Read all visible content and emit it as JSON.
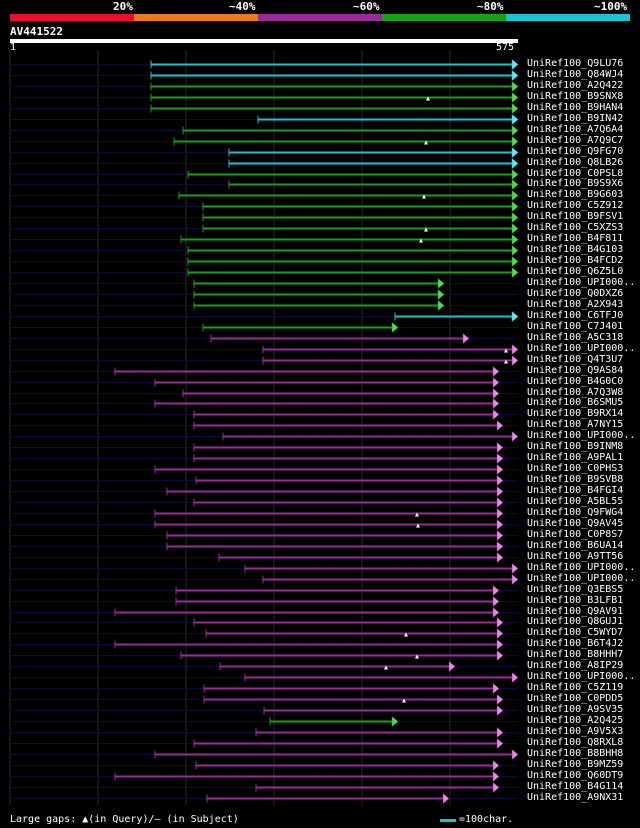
{
  "legend": {
    "labels": [
      "20%",
      "~40%",
      "~60%",
      "~80%",
      "~100%"
    ],
    "colors": [
      "#e8112d",
      "#e87a1a",
      "#9b2a9b",
      "#18a018",
      "#1ac3d1"
    ]
  },
  "query": {
    "id": "AV441522",
    "start": "1",
    "end": "575"
  },
  "hit_names": [
    "UniRef100_Q9LU76",
    "UniRef100_Q84WJ4",
    "UniRef100_A2Q422",
    "UniRef100_B9SNX8",
    "UniRef100_B9HAN4",
    "UniRef100_B9IN42",
    "UniRef100_A7Q6A4",
    "UniRef100_A7Q9C7",
    "UniRef100_Q9FG70",
    "UniRef100_Q8LB26",
    "UniRef100_C0PSL8",
    "UniRef100_B9S9X6",
    "UniRef100_B9G603",
    "UniRef100_C5Z912",
    "UniRef100_B9FSV1",
    "UniRef100_C5XZS3",
    "UniRef100_B4F811",
    "UniRef100_B4G103",
    "UniRef100_B4FCD2",
    "UniRef100_Q6Z5L0",
    "UniRef100_UPI000..",
    "UniRef100_Q0DXZ6",
    "UniRef100_A2X943",
    "UniRef100_C6TFJ0",
    "UniRef100_C7J401",
    "UniRef100_A5C318",
    "UniRef100_UPI000..",
    "UniRef100_Q4T3U7",
    "UniRef100_Q9AS84",
    "UniRef100_B4G0C0",
    "UniRef100_A7Q3W8",
    "UniRef100_B6SMU5",
    "UniRef100_B9RX14",
    "UniRef100_A7NY15",
    "UniRef100_UPI000..",
    "UniRef100_B9INM8",
    "UniRef100_A9PAL1",
    "UniRef100_C0PHS3",
    "UniRef100_B9SVB8",
    "UniRef100_B4FGI4",
    "UniRef100_A5BL55",
    "UniRef100_Q9FWG4",
    "UniRef100_Q9AV45",
    "UniRef100_C0P8S7",
    "UniRef100_B6UA14",
    "UniRef100_A9TT56",
    "UniRef100_UPI000..",
    "UniRef100_UPI000..",
    "UniRef100_Q3EBS5",
    "UniRef100_B3LFB1",
    "UniRef100_Q9AV91",
    "UniRef100_Q8GUJ1",
    "UniRef100_C5WYD7",
    "UniRef100_B6T4J2",
    "UniRef100_B8HHH7",
    "UniRef100_A8IP29",
    "UniRef100_UPI000..",
    "UniRef100_C5Z119",
    "UniRef100_C0PDD5",
    "UniRef100_A9SV35",
    "UniRef100_A2Q425",
    "UniRef100_A9V5X3",
    "UniRef100_Q8RXL8",
    "UniRef100_B8BHH8",
    "UniRef100_B9MZ59",
    "UniRef100_Q60DT9",
    "UniRef100_B4G114",
    "UniRef100_A9NX31"
  ],
  "hit_colors": [
    "cyan",
    "cyan",
    "green",
    "green",
    "green",
    "cyan",
    "green",
    "green",
    "cyan",
    "cyan",
    "green",
    "green",
    "green",
    "green",
    "green",
    "green",
    "green",
    "green",
    "green",
    "green",
    "green",
    "green",
    "green",
    "cyan",
    "green",
    "purple",
    "purple",
    "purple",
    "purple",
    "purple",
    "purple",
    "purple",
    "purple",
    "purple",
    "purple",
    "purple",
    "purple",
    "purple",
    "purple",
    "purple",
    "purple",
    "purple",
    "purple",
    "purple",
    "purple",
    "purple",
    "purple",
    "purple",
    "purple",
    "purple",
    "purple",
    "purple",
    "purple",
    "purple",
    "purple",
    "purple",
    "purple",
    "purple",
    "purple",
    "purple",
    "green",
    "purple",
    "purple",
    "purple",
    "purple",
    "purple",
    "purple",
    "purple"
  ],
  "footer": {
    "text": "Large gaps: ▲(in Query)/– (in Subject)",
    "scale_label": "=100char."
  }
}
